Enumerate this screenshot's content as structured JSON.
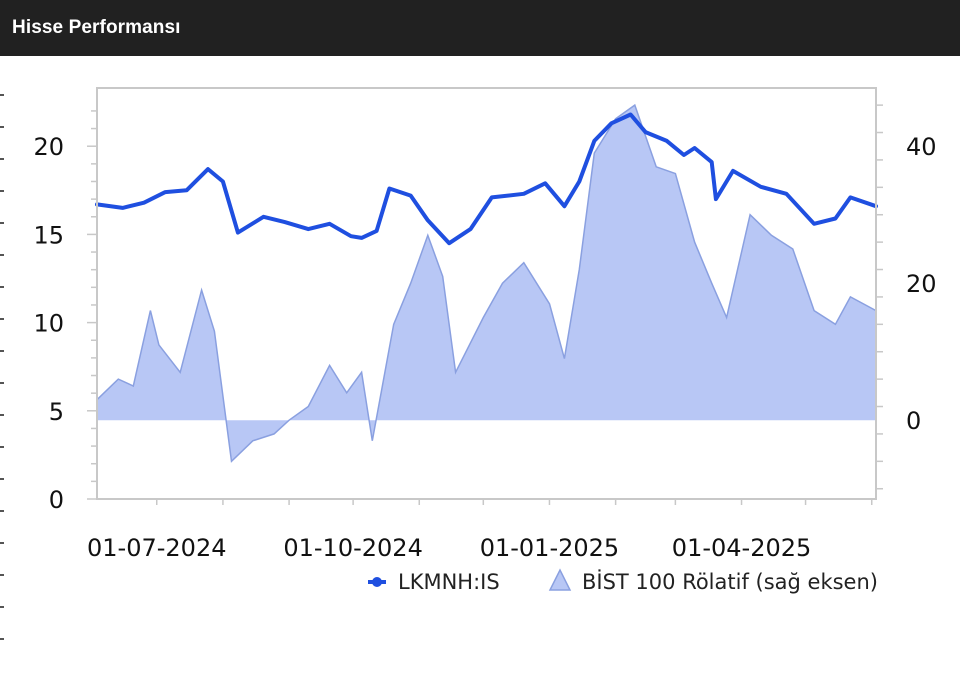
{
  "header": {
    "title": "Hisse Performansı"
  },
  "colors": {
    "header_bg": "#212121",
    "line": "#1f4fe0",
    "area_fill": "#b8c7f5",
    "area_stroke": "#8aa0e0",
    "frame": "#c8c8c8"
  },
  "chart_data": {
    "type": "line",
    "x_tick_labels": [
      "01-07-2024",
      "01-10-2024",
      "01-01-2025",
      "01-04-2025"
    ],
    "x_range": [
      "2024-06-03",
      "2025-06-03"
    ],
    "left_axis": {
      "ticks": [
        0,
        5,
        10,
        15,
        20
      ],
      "range": [
        0,
        23.3
      ]
    },
    "right_axis": {
      "ticks": [
        0,
        20,
        40
      ],
      "range": [
        -11.5,
        48.5
      ]
    },
    "legend": {
      "placement": "bottom-right"
    },
    "series": [
      {
        "name": "LKMNH:IS",
        "axis": "left",
        "style": "line",
        "points": [
          [
            "2024-06-03",
            16.7
          ],
          [
            "2024-06-15",
            16.5
          ],
          [
            "2024-06-25",
            16.8
          ],
          [
            "2024-07-05",
            17.4
          ],
          [
            "2024-07-15",
            17.5
          ],
          [
            "2024-07-25",
            18.7
          ],
          [
            "2024-08-01",
            18.0
          ],
          [
            "2024-08-08",
            15.1
          ],
          [
            "2024-08-20",
            16.0
          ],
          [
            "2024-08-30",
            15.7
          ],
          [
            "2024-09-10",
            15.3
          ],
          [
            "2024-09-20",
            15.6
          ],
          [
            "2024-09-30",
            14.9
          ],
          [
            "2024-10-05",
            14.8
          ],
          [
            "2024-10-12",
            15.2
          ],
          [
            "2024-10-18",
            17.6
          ],
          [
            "2024-10-28",
            17.2
          ],
          [
            "2024-11-05",
            15.8
          ],
          [
            "2024-11-15",
            14.5
          ],
          [
            "2024-11-25",
            15.3
          ],
          [
            "2024-12-05",
            17.1
          ],
          [
            "2024-12-20",
            17.3
          ],
          [
            "2024-12-30",
            17.9
          ],
          [
            "2025-01-08",
            16.6
          ],
          [
            "2025-01-15",
            18.0
          ],
          [
            "2025-01-22",
            20.3
          ],
          [
            "2025-01-30",
            21.3
          ],
          [
            "2025-02-08",
            21.8
          ],
          [
            "2025-02-15",
            20.8
          ],
          [
            "2025-02-25",
            20.3
          ],
          [
            "2025-03-05",
            19.5
          ],
          [
            "2025-03-10",
            19.9
          ],
          [
            "2025-03-18",
            19.1
          ],
          [
            "2025-03-20",
            17.0
          ],
          [
            "2025-03-28",
            18.6
          ],
          [
            "2025-04-10",
            17.7
          ],
          [
            "2025-04-22",
            17.3
          ],
          [
            "2025-05-05",
            15.6
          ],
          [
            "2025-05-15",
            15.9
          ],
          [
            "2025-05-22",
            17.1
          ],
          [
            "2025-06-03",
            16.6
          ]
        ]
      },
      {
        "name": "BİST 100 Rölatif (sağ eksen)",
        "axis": "right",
        "style": "area",
        "points": [
          [
            "2024-06-03",
            3
          ],
          [
            "2024-06-13",
            6
          ],
          [
            "2024-06-20",
            5
          ],
          [
            "2024-06-28",
            16
          ],
          [
            "2024-07-02",
            11
          ],
          [
            "2024-07-12",
            7
          ],
          [
            "2024-07-22",
            19
          ],
          [
            "2024-07-28",
            13
          ],
          [
            "2024-08-05",
            -6
          ],
          [
            "2024-08-15",
            -3
          ],
          [
            "2024-08-25",
            -2
          ],
          [
            "2024-09-01",
            0
          ],
          [
            "2024-09-10",
            2
          ],
          [
            "2024-09-20",
            8
          ],
          [
            "2024-09-28",
            4
          ],
          [
            "2024-10-05",
            7
          ],
          [
            "2024-10-10",
            -3
          ],
          [
            "2024-10-20",
            14
          ],
          [
            "2024-10-28",
            20
          ],
          [
            "2024-11-05",
            27
          ],
          [
            "2024-11-12",
            21
          ],
          [
            "2024-11-18",
            7
          ],
          [
            "2024-12-01",
            15
          ],
          [
            "2024-12-10",
            20
          ],
          [
            "2024-12-20",
            23
          ],
          [
            "2025-01-01",
            17
          ],
          [
            "2025-01-08",
            9
          ],
          [
            "2025-01-15",
            22
          ],
          [
            "2025-01-22",
            39
          ],
          [
            "2025-02-01",
            44
          ],
          [
            "2025-02-10",
            46
          ],
          [
            "2025-02-20",
            37
          ],
          [
            "2025-03-01",
            36
          ],
          [
            "2025-03-10",
            26
          ],
          [
            "2025-03-18",
            20
          ],
          [
            "2025-03-25",
            15
          ],
          [
            "2025-04-05",
            30
          ],
          [
            "2025-04-15",
            27
          ],
          [
            "2025-04-25",
            25
          ],
          [
            "2025-05-05",
            16
          ],
          [
            "2025-05-15",
            14
          ],
          [
            "2025-05-22",
            18
          ],
          [
            "2025-06-03",
            16
          ]
        ]
      }
    ]
  }
}
